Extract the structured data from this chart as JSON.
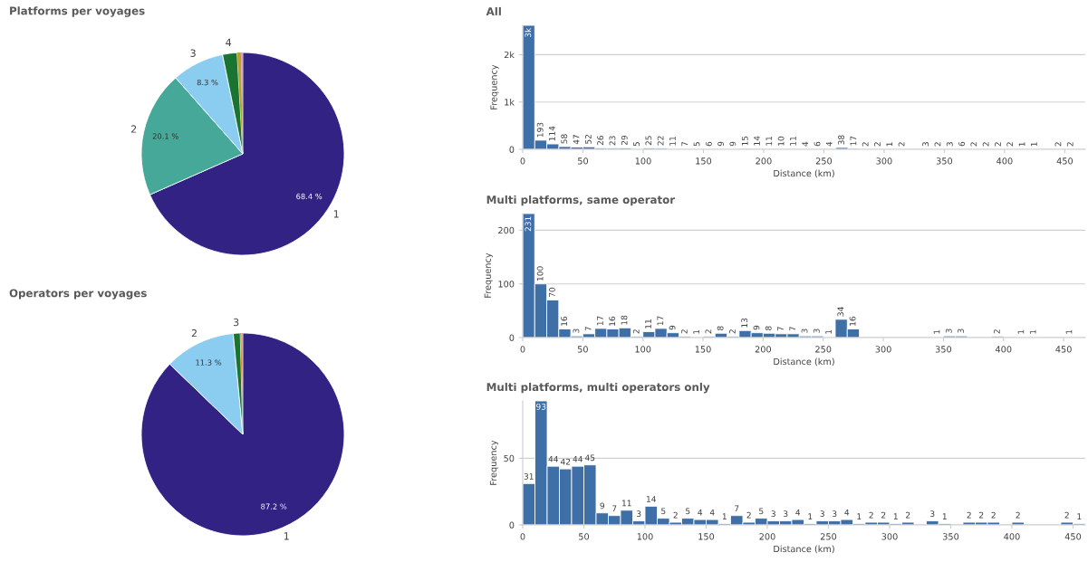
{
  "chart_data": [
    {
      "type": "pie",
      "title": "Platforms per voyages",
      "categories": [
        "1",
        "2",
        "3",
        "4",
        null,
        null
      ],
      "values": [
        68.4,
        20.1,
        8.3,
        2.3,
        0.6,
        0.3
      ],
      "value_labels": [
        "68.4 %",
        "20.1 %",
        "8.3 %",
        null,
        null,
        null
      ],
      "colors": [
        "#312283",
        "#46a899",
        "#8bcdf0",
        "#1a7431",
        "#b5a42a",
        "#e8a0a8"
      ]
    },
    {
      "type": "pie",
      "title": "Operators per voyages",
      "categories": [
        "1",
        "2",
        "3",
        null,
        null
      ],
      "values": [
        87.2,
        11.3,
        1.1,
        0.2,
        0.2
      ],
      "value_labels": [
        "87.2 %",
        "11.3 %",
        null,
        null,
        null
      ],
      "colors": [
        "#312283",
        "#8bcdf0",
        "#1a7431",
        "#d9882a",
        "#e8a0a8"
      ]
    },
    {
      "type": "histogram",
      "title": "All",
      "xlabel": "Distance (km)",
      "ylabel": "Frequency",
      "color": "#3f6fa7",
      "bins": [
        0,
        10,
        20,
        30,
        40,
        50,
        60,
        70,
        80,
        90,
        100,
        110,
        120,
        130,
        140,
        150,
        160,
        170,
        180,
        190,
        200,
        210,
        220,
        230,
        240,
        250,
        260,
        270,
        280,
        290,
        300,
        310,
        320,
        330,
        340,
        350,
        360,
        370,
        380,
        390,
        400,
        410,
        420,
        430,
        440,
        450,
        460
      ],
      "values": [
        2620,
        193,
        114,
        58,
        47,
        52,
        26,
        23,
        29,
        5,
        25,
        22,
        11,
        7,
        5,
        6,
        9,
        9,
        15,
        14,
        11,
        10,
        11,
        4,
        6,
        4,
        38,
        17,
        2,
        2,
        1,
        2,
        0,
        3,
        2,
        3,
        6,
        2,
        2,
        2,
        2,
        1,
        1,
        0,
        2,
        2
      ],
      "value_labels": [
        "3k",
        "193",
        "114",
        "58",
        "47",
        "52",
        "26",
        "23",
        "29",
        "5",
        "25",
        "22",
        "11",
        "7",
        "5",
        "6",
        "9",
        "9",
        "15",
        "14",
        "11",
        "10",
        "11",
        "4",
        "6",
        "4",
        "38",
        "17",
        "2",
        "2",
        "1",
        "2",
        null,
        "3",
        "2",
        "3",
        "6",
        "2",
        "2",
        "2",
        "2",
        "1",
        "1",
        null,
        "2",
        "2"
      ],
      "xlim": [
        0,
        467
      ],
      "xticks": [
        0,
        50,
        100,
        150,
        200,
        250,
        300,
        350,
        400,
        450
      ],
      "ylim": [
        0,
        2620
      ],
      "yticks": [
        0,
        {
          "value": 1000,
          "label": "1k"
        },
        {
          "value": 2000,
          "label": "2k"
        }
      ],
      "grid": "y"
    },
    {
      "type": "histogram",
      "title": "Multi platforms, same operator",
      "xlabel": "Distance (km)",
      "ylabel": "Frequency",
      "color": "#3f6fa7",
      "bins": [
        0,
        10,
        20,
        30,
        40,
        50,
        60,
        70,
        80,
        90,
        100,
        110,
        120,
        130,
        140,
        150,
        160,
        170,
        180,
        190,
        200,
        210,
        220,
        230,
        240,
        250,
        260,
        270,
        280,
        290,
        300,
        310,
        320,
        330,
        340,
        350,
        360,
        370,
        380,
        390,
        400,
        410,
        420,
        430,
        440,
        450,
        460
      ],
      "values": [
        231,
        100,
        70,
        16,
        3,
        7,
        17,
        16,
        18,
        2,
        11,
        17,
        9,
        2,
        1,
        2,
        8,
        2,
        13,
        9,
        8,
        7,
        7,
        3,
        3,
        1,
        34,
        16,
        0,
        0,
        0,
        0,
        0,
        0,
        1,
        3,
        3,
        0,
        0,
        2,
        0,
        1,
        1,
        0,
        0,
        1
      ],
      "value_labels": [
        "231",
        "100",
        "70",
        "16",
        "3",
        "7",
        "17",
        "16",
        "18",
        "2",
        "11",
        "17",
        "9",
        "2",
        "1",
        "2",
        "8",
        "2",
        "13",
        "9",
        "8",
        "7",
        "7",
        "3",
        "3",
        "1",
        "34",
        "16",
        null,
        null,
        null,
        null,
        null,
        null,
        "1",
        "3",
        "3",
        null,
        null,
        "2",
        null,
        "1",
        "1",
        null,
        null,
        "1"
      ],
      "xlim": [
        0,
        468
      ],
      "xticks": [
        0,
        50,
        100,
        150,
        200,
        250,
        300,
        350,
        400,
        450
      ],
      "ylim": [
        0,
        231
      ],
      "yticks": [
        0,
        100,
        200
      ],
      "grid": "y"
    },
    {
      "type": "histogram",
      "title": "Multi platforms, multi operators only",
      "xlabel": "Distance (km)",
      "ylabel": "Frequency",
      "color": "#3f6fa7",
      "bins": [
        0,
        10,
        20,
        30,
        40,
        50,
        60,
        70,
        80,
        90,
        100,
        110,
        120,
        130,
        140,
        150,
        160,
        170,
        180,
        190,
        200,
        210,
        220,
        230,
        240,
        250,
        260,
        270,
        280,
        290,
        300,
        310,
        320,
        330,
        340,
        350,
        360,
        370,
        380,
        390,
        400,
        410,
        420,
        430,
        440,
        450,
        460
      ],
      "values": [
        31,
        93,
        44,
        42,
        44,
        45,
        9,
        7,
        11,
        3,
        14,
        5,
        2,
        5,
        4,
        4,
        1,
        7,
        2,
        5,
        3,
        3,
        4,
        1,
        3,
        3,
        4,
        1,
        2,
        2,
        1,
        2,
        0,
        3,
        1,
        0,
        2,
        2,
        2,
        0,
        2,
        0,
        0,
        0,
        2,
        1
      ],
      "value_labels": [
        "31",
        "93",
        "44",
        "42",
        "44",
        "45",
        "9",
        "7",
        "11",
        "3",
        "14",
        "5",
        "2",
        "5",
        "4",
        "4",
        "1",
        "7",
        "2",
        "5",
        "3",
        "3",
        "4",
        "1",
        "3",
        "3",
        "4",
        "1",
        "2",
        "2",
        "1",
        "2",
        null,
        "3",
        "1",
        null,
        "2",
        "2",
        "2",
        null,
        "2",
        null,
        null,
        null,
        "2",
        "1"
      ],
      "xlim": [
        0,
        460
      ],
      "xticks": [
        0,
        50,
        100,
        150,
        200,
        250,
        300,
        350,
        400,
        450
      ],
      "ylim": [
        0,
        93
      ],
      "yticks": [
        0,
        50
      ],
      "grid": "y"
    }
  ]
}
